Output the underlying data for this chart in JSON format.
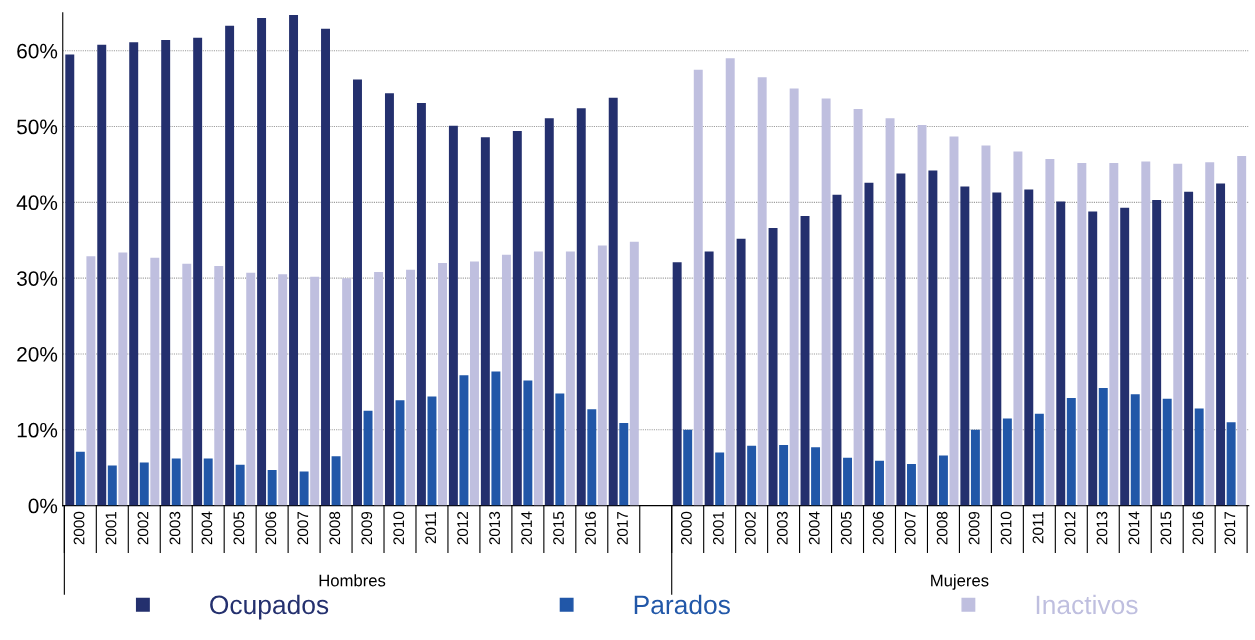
{
  "chart_data": {
    "type": "bar",
    "categories": [
      "2000",
      "2001",
      "2002",
      "2003",
      "2004",
      "2005",
      "2006",
      "2007",
      "2008",
      "2009",
      "2010",
      "2011",
      "2012",
      "2013",
      "2014",
      "2015",
      "2016",
      "2017",
      null,
      "2000",
      "2001",
      "2002",
      "2003",
      "2004",
      "2005",
      "2006",
      "2007",
      "2008",
      "2009",
      "2010",
      "2011",
      "2012",
      "2013",
      "2014",
      "2015",
      "2016",
      "2017"
    ],
    "series": [
      {
        "name": "Ocupados",
        "color": "#24306e",
        "values": [
          59.5,
          60.8,
          61.1,
          61.4,
          61.7,
          63.3,
          64.3,
          64.7,
          62.9,
          56.2,
          54.4,
          53.1,
          50.1,
          48.6,
          49.4,
          51.1,
          52.4,
          53.8,
          null,
          32.1,
          33.5,
          35.2,
          36.6,
          38.2,
          41.0,
          42.6,
          43.8,
          44.2,
          42.1,
          41.3,
          41.7,
          40.1,
          38.8,
          39.3,
          40.3,
          41.4,
          42.5
        ]
      },
      {
        "name": "Parados",
        "color": "#2157a8",
        "values": [
          7.1,
          5.3,
          5.7,
          6.2,
          6.2,
          5.4,
          4.7,
          4.5,
          6.5,
          12.5,
          13.9,
          14.4,
          17.2,
          17.7,
          16.5,
          14.8,
          12.7,
          10.9,
          null,
          10.0,
          7.0,
          7.9,
          8.0,
          7.7,
          6.3,
          5.9,
          5.5,
          6.6,
          10.0,
          11.5,
          12.1,
          14.2,
          15.5,
          14.7,
          14.1,
          12.8,
          11.0
        ]
      },
      {
        "name": "Inactivos",
        "color": "#bfbfdf",
        "values": [
          32.9,
          33.4,
          32.7,
          31.9,
          31.6,
          30.7,
          30.5,
          30.2,
          30.0,
          30.8,
          31.1,
          32.0,
          32.2,
          33.1,
          33.5,
          33.5,
          34.3,
          34.8,
          null,
          57.5,
          59.0,
          56.5,
          55.0,
          53.7,
          52.3,
          51.1,
          50.2,
          48.7,
          47.5,
          46.7,
          45.7,
          45.2,
          45.2,
          45.4,
          45.1,
          45.3,
          46.1
        ]
      }
    ],
    "annotations": [
      "Hombres",
      "Mujeres"
    ],
    "ylim": [
      0,
      65
    ],
    "yticks": [
      {
        "value": 0,
        "label": "0%"
      },
      {
        "value": 10,
        "label": "10%"
      },
      {
        "value": 20,
        "label": "20%"
      },
      {
        "value": 30,
        "label": "30%"
      },
      {
        "value": 40,
        "label": "40%"
      },
      {
        "value": 50,
        "label": "50%"
      },
      {
        "value": 60,
        "label": "60%"
      }
    ],
    "grid": "y",
    "legend": "bottom"
  }
}
